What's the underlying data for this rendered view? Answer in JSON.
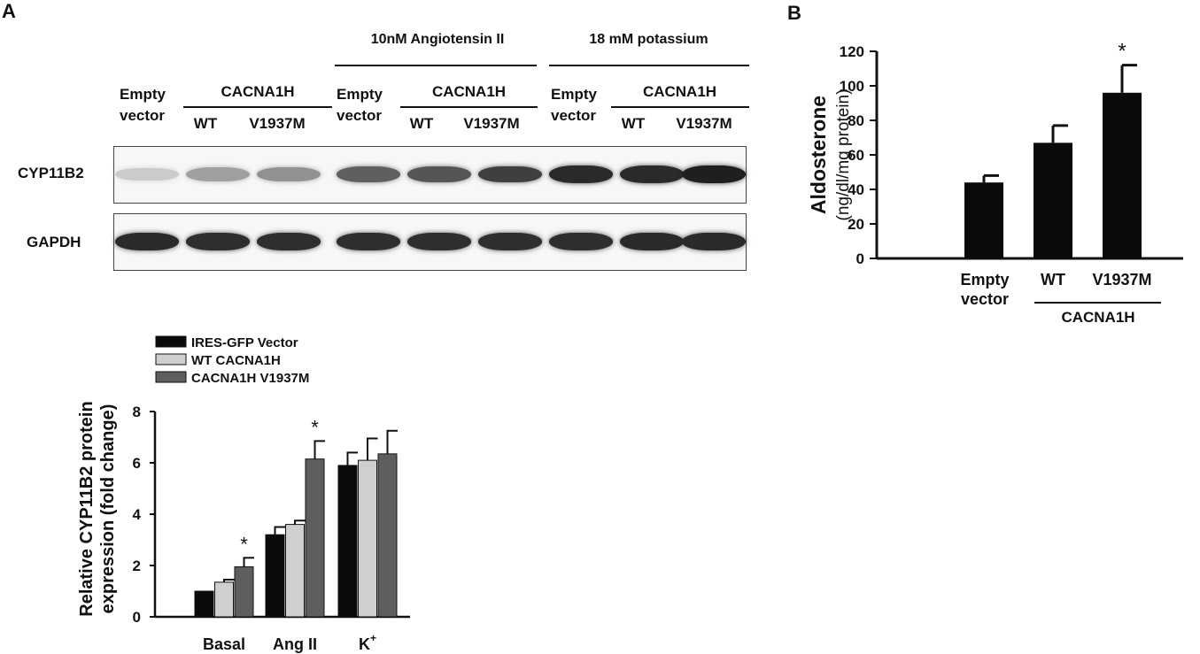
{
  "panel_a": {
    "letter": "A",
    "blot": {
      "group_headers": [
        "10nM Angiotensin II",
        "18 mM potassium"
      ],
      "empty_label_line1": "Empty",
      "empty_label_line2": "vector",
      "cacna1h_label": "CACNA1H",
      "lane_labels": [
        "WT",
        "V1937M"
      ],
      "row_labels": [
        "CYP11B2",
        "GAPDH"
      ],
      "cyp11b2_intensity": [
        0.15,
        0.35,
        0.42,
        0.65,
        0.7,
        0.8,
        0.9,
        0.9,
        0.95
      ],
      "gapdh_intensity": [
        0.9,
        0.88,
        0.88,
        0.88,
        0.88,
        0.88,
        0.88,
        0.9,
        0.9
      ]
    }
  },
  "panel_b": {
    "letter": "B"
  },
  "chart_data": [
    {
      "type": "bar",
      "title": "",
      "ylabel_line1": "Relative CYP11B2 protein",
      "ylabel_line2": "expression (fold change)",
      "categories": [
        "Basal",
        "Ang II",
        "K+"
      ],
      "category_display": [
        "Basal",
        "Ang II",
        "K"
      ],
      "superscript_k": "+",
      "ylim": [
        0,
        8
      ],
      "yticks": [
        0,
        2,
        4,
        6,
        8
      ],
      "series": [
        {
          "name": "IRES-GFP Vector",
          "color": "#0a0a0a",
          "values": [
            1.0,
            3.2,
            5.9
          ],
          "errors": [
            0.0,
            0.3,
            0.5
          ]
        },
        {
          "name": "WT CACNA1H",
          "color": "#cfcfcf",
          "values": [
            1.35,
            3.6,
            6.1
          ],
          "errors": [
            0.1,
            0.15,
            0.85
          ]
        },
        {
          "name": "CACNA1H V1937M",
          "color": "#5e5e5e",
          "values": [
            1.95,
            6.15,
            6.35
          ],
          "errors": [
            0.35,
            0.7,
            0.9
          ]
        }
      ],
      "significance": [
        {
          "category": "Basal",
          "series": "CACNA1H V1937M",
          "mark": "*"
        },
        {
          "category": "Ang II",
          "series": "CACNA1H V1937M",
          "mark": "*"
        }
      ],
      "legend_position": "top-left"
    },
    {
      "type": "bar",
      "title": "",
      "ylabel_line1": "Aldosterone",
      "ylabel_line2": "(ng/dl/mg protein)",
      "categories": [
        "Empty vector",
        "WT",
        "V1937M"
      ],
      "category_lines": [
        [
          "Empty",
          "vector"
        ],
        [
          "WT"
        ],
        [
          "V1937M"
        ]
      ],
      "group_label": "CACNA1H",
      "ylim": [
        0,
        120
      ],
      "yticks": [
        0,
        20,
        40,
        60,
        80,
        100,
        120
      ],
      "values": [
        44,
        67,
        96
      ],
      "errors": [
        4,
        10,
        16
      ],
      "bar_color": "#0a0a0a",
      "significance": [
        {
          "category": "V1937M",
          "mark": "*"
        }
      ]
    }
  ]
}
